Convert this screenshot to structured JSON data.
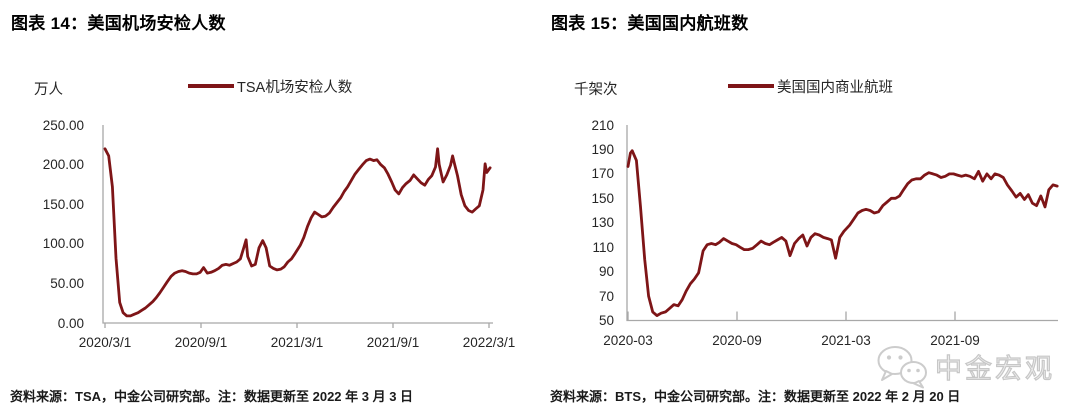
{
  "watermark": {
    "label": "中金宏观",
    "icon": "wechat-icon"
  },
  "charts": [
    {
      "title": "图表 14：美国机场安检人数",
      "unit_label": "万人",
      "legend_label": "TSA机场安检人数",
      "source_note": "资料来源：TSA，中金公司研究部。注：数据更新至 2022 年 3 月 3 日",
      "line_color": "#7E1517",
      "axis_color": "#A8A8A8",
      "chart_data": {
        "type": "line",
        "title": "美国机场安检人数",
        "ylabel": "万人",
        "grid": false,
        "legend_position": "top",
        "ylim": [
          0,
          250
        ],
        "y_ticks": [
          "250.00",
          "200.00",
          "150.00",
          "100.00",
          "50.00",
          "0.00"
        ],
        "x_ticks": [
          "2020/3/1",
          "2020/9/1",
          "2021/3/1",
          "2021/9/1",
          "2022/3/1"
        ],
        "series": [
          {
            "name": "TSA机场安检人数",
            "dates": [
              "2020-03-01",
              "2020-03-08",
              "2020-03-15",
              "2020-03-22",
              "2020-03-29",
              "2020-04-05",
              "2020-04-12",
              "2020-04-19",
              "2020-04-26",
              "2020-05-03",
              "2020-05-10",
              "2020-05-17",
              "2020-05-24",
              "2020-05-31",
              "2020-06-07",
              "2020-06-14",
              "2020-06-21",
              "2020-06-28",
              "2020-07-05",
              "2020-07-12",
              "2020-07-19",
              "2020-07-26",
              "2020-08-02",
              "2020-08-09",
              "2020-08-16",
              "2020-08-23",
              "2020-08-30",
              "2020-09-06",
              "2020-09-13",
              "2020-09-20",
              "2020-09-27",
              "2020-10-04",
              "2020-10-11",
              "2020-10-18",
              "2020-10-25",
              "2020-11-01",
              "2020-11-08",
              "2020-11-15",
              "2020-11-22",
              "2020-11-26",
              "2020-11-29",
              "2020-12-06",
              "2020-12-13",
              "2020-12-20",
              "2020-12-27",
              "2021-01-03",
              "2021-01-10",
              "2021-01-17",
              "2021-01-24",
              "2021-01-31",
              "2021-02-07",
              "2021-02-14",
              "2021-02-21",
              "2021-02-28",
              "2021-03-07",
              "2021-03-14",
              "2021-03-21",
              "2021-03-28",
              "2021-04-04",
              "2021-04-11",
              "2021-04-18",
              "2021-04-25",
              "2021-05-02",
              "2021-05-09",
              "2021-05-16",
              "2021-05-23",
              "2021-05-30",
              "2021-06-06",
              "2021-06-13",
              "2021-06-20",
              "2021-06-27",
              "2021-07-04",
              "2021-07-11",
              "2021-07-18",
              "2021-07-25",
              "2021-08-01",
              "2021-08-08",
              "2021-08-15",
              "2021-08-22",
              "2021-08-29",
              "2021-09-05",
              "2021-09-12",
              "2021-09-19",
              "2021-09-26",
              "2021-10-03",
              "2021-10-10",
              "2021-10-17",
              "2021-10-24",
              "2021-10-31",
              "2021-11-07",
              "2021-11-14",
              "2021-11-21",
              "2021-11-25",
              "2021-11-28",
              "2021-12-05",
              "2021-12-12",
              "2021-12-19",
              "2021-12-23",
              "2021-12-26",
              "2022-01-02",
              "2022-01-09",
              "2022-01-16",
              "2022-01-23",
              "2022-01-30",
              "2022-02-06",
              "2022-02-13",
              "2022-02-20",
              "2022-02-24",
              "2022-02-27",
              "2022-03-03"
            ],
            "values": [
              220,
              211,
              172,
              82,
              26,
              13,
              9,
              9,
              11,
              13,
              16,
              19,
              23,
              27,
              32,
              38,
              45,
              52,
              59,
              63,
              65,
              66,
              65,
              63,
              62,
              62,
              64,
              70,
              63,
              64,
              66,
              69,
              73,
              74,
              73,
              75,
              77,
              81,
              96,
              105,
              84,
              72,
              74,
              95,
              104,
              95,
              72,
              69,
              67,
              68,
              71,
              77,
              81,
              88,
              98,
              108,
              122,
              133,
              140,
              137,
              134,
              135,
              139,
              146,
              152,
              158,
              166,
              172,
              180,
              188,
              194,
              200,
              205,
              207,
              205,
              206,
              200,
              196,
              188,
              178,
              168,
              163,
              171,
              176,
              180,
              187,
              182,
              177,
              174,
              181,
              186,
              197,
              220,
              200,
              178,
              187,
              199,
              211,
              203,
              186,
              162,
              148,
              142,
              140,
              144,
              148,
              168,
              201,
              190,
              196
            ]
          }
        ]
      }
    },
    {
      "title": "图表 15：美国国内航班数",
      "unit_label": "千架次",
      "legend_label": "美国国内商业航班",
      "source_note": "资料来源：BTS，中金公司研究部。注：数据更新至 2022 年 2 月 20 日",
      "line_color": "#7E1517",
      "axis_color": "#A8A8A8",
      "chart_data": {
        "type": "line",
        "title": "美国国内航班数",
        "ylabel": "千架次",
        "grid": false,
        "legend_position": "top",
        "ylim": [
          50,
          210
        ],
        "y_ticks": [
          "210",
          "190",
          "170",
          "150",
          "130",
          "110",
          "90",
          "70",
          "50"
        ],
        "x_ticks": [
          "2020-03",
          "2020-09",
          "2021-03",
          "2021-09"
        ],
        "series": [
          {
            "name": "美国国内商业航班",
            "dates": [
              "2020-03-01",
              "2020-03-05",
              "2020-03-08",
              "2020-03-15",
              "2020-03-22",
              "2020-03-29",
              "2020-04-05",
              "2020-04-12",
              "2020-04-19",
              "2020-04-26",
              "2020-05-03",
              "2020-05-10",
              "2020-05-17",
              "2020-05-24",
              "2020-05-31",
              "2020-06-07",
              "2020-06-14",
              "2020-06-21",
              "2020-06-28",
              "2020-07-05",
              "2020-07-12",
              "2020-07-19",
              "2020-07-26",
              "2020-08-02",
              "2020-08-09",
              "2020-08-16",
              "2020-08-23",
              "2020-08-30",
              "2020-09-06",
              "2020-09-13",
              "2020-09-20",
              "2020-09-27",
              "2020-10-04",
              "2020-10-11",
              "2020-10-18",
              "2020-10-25",
              "2020-11-01",
              "2020-11-08",
              "2020-11-15",
              "2020-11-22",
              "2020-11-29",
              "2020-12-06",
              "2020-12-13",
              "2020-12-20",
              "2020-12-27",
              "2021-01-03",
              "2021-01-10",
              "2021-01-17",
              "2021-01-24",
              "2021-01-31",
              "2021-02-07",
              "2021-02-14",
              "2021-02-21",
              "2021-02-28",
              "2021-03-07",
              "2021-03-14",
              "2021-03-21",
              "2021-03-28",
              "2021-04-04",
              "2021-04-11",
              "2021-04-18",
              "2021-04-25",
              "2021-05-02",
              "2021-05-09",
              "2021-05-16",
              "2021-05-23",
              "2021-05-30",
              "2021-06-06",
              "2021-06-13",
              "2021-06-20",
              "2021-06-27",
              "2021-07-04",
              "2021-07-11",
              "2021-07-18",
              "2021-07-25",
              "2021-08-01",
              "2021-08-08",
              "2021-08-15",
              "2021-08-22",
              "2021-08-29",
              "2021-09-05",
              "2021-09-12",
              "2021-09-19",
              "2021-09-26",
              "2021-10-03",
              "2021-10-10",
              "2021-10-17",
              "2021-10-24",
              "2021-10-31",
              "2021-11-07",
              "2021-11-14",
              "2021-11-21",
              "2021-11-28",
              "2021-12-05",
              "2021-12-12",
              "2021-12-19",
              "2021-12-26",
              "2022-01-02",
              "2022-01-09",
              "2022-01-16",
              "2022-01-23",
              "2022-01-30",
              "2022-02-06",
              "2022-02-13",
              "2022-02-20"
            ],
            "values": [
              176,
              187,
              189,
              181,
              143,
              100,
              70,
              57,
              54,
              56,
              57,
              60,
              63,
              62,
              67,
              74,
              80,
              84,
              89,
              107,
              112,
              113,
              112,
              114,
              117,
              115,
              113,
              112,
              110,
              108,
              108,
              109,
              112,
              115,
              113,
              112,
              114,
              116,
              118,
              115,
              103,
              113,
              117,
              120,
              111,
              118,
              121,
              120,
              118,
              117,
              116,
              101,
              118,
              123,
              128,
              133,
              138,
              140,
              141,
              140,
              138,
              139,
              144,
              147,
              150,
              150,
              152,
              157,
              162,
              165,
              166,
              166,
              169,
              171,
              170,
              169,
              167,
              168,
              170,
              170,
              169,
              168,
              169,
              168,
              166,
              172,
              164,
              170,
              166,
              170,
              169,
              167,
              161,
              156,
              151,
              154,
              149,
              153,
              146,
              144,
              152,
              143,
              157,
              161,
              160
            ]
          }
        ]
      }
    }
  ]
}
